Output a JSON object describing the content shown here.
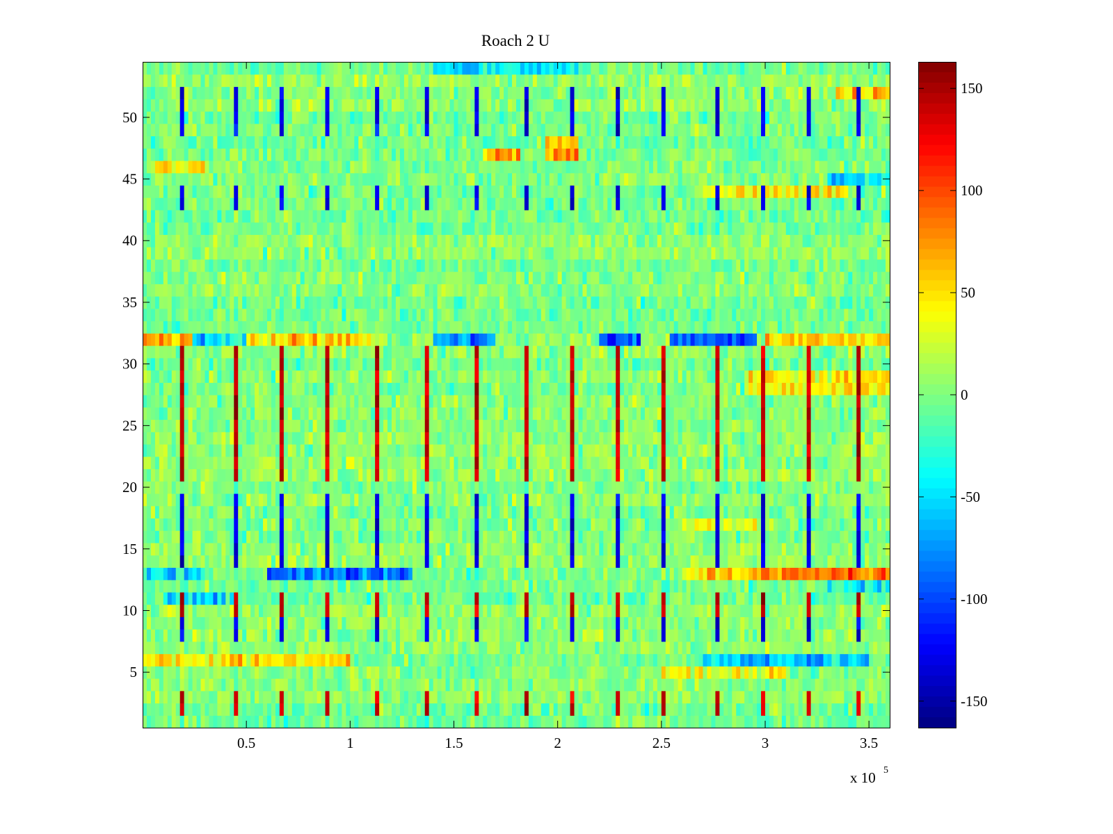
{
  "chart_data": {
    "type": "heatmap",
    "title": "Roach 2 U",
    "xlabel": "",
    "ylabel": "",
    "x_exponent_base": "x 10",
    "x_exponent_power": "5",
    "xlim": [
      0,
      3.6
    ],
    "ylim": [
      0.5,
      54.5
    ],
    "x_ticks": [
      {
        "value": 0.5,
        "label": "0.5"
      },
      {
        "value": 1,
        "label": "1"
      },
      {
        "value": 1.5,
        "label": "1.5"
      },
      {
        "value": 2,
        "label": "2"
      },
      {
        "value": 2.5,
        "label": "2.5"
      },
      {
        "value": 3,
        "label": "3"
      },
      {
        "value": 3.5,
        "label": "3.5"
      }
    ],
    "y_ticks": [
      {
        "value": 5,
        "label": "5"
      },
      {
        "value": 10,
        "label": "10"
      },
      {
        "value": 15,
        "label": "15"
      },
      {
        "value": 20,
        "label": "20"
      },
      {
        "value": 25,
        "label": "25"
      },
      {
        "value": 30,
        "label": "30"
      },
      {
        "value": 35,
        "label": "35"
      },
      {
        "value": 40,
        "label": "40"
      },
      {
        "value": 45,
        "label": "45"
      },
      {
        "value": 50,
        "label": "50"
      }
    ],
    "rows": 54,
    "columns": 180,
    "colorbar": {
      "colormap": "jet",
      "clim": [
        -163,
        163
      ],
      "ticks": [
        {
          "value": 150,
          "label": "150"
        },
        {
          "value": 100,
          "label": "100"
        },
        {
          "value": 50,
          "label": "50"
        },
        {
          "value": 0,
          "label": "0"
        },
        {
          "value": -50,
          "label": "-50"
        },
        {
          "value": -100,
          "label": "-100"
        },
        {
          "value": -150,
          "label": "-150"
        }
      ]
    },
    "background_value": 0,
    "noise_amplitude": 22,
    "periodic_spikes": {
      "x_positions": [
        0.18,
        0.44,
        0.67,
        0.89,
        1.12,
        1.36,
        1.61,
        1.84,
        2.06,
        2.28,
        2.52,
        2.76,
        2.99,
        3.21,
        3.44
      ],
      "rows_positive": [
        2,
        3,
        10,
        11,
        21,
        22,
        23,
        24,
        25,
        26,
        27,
        28,
        29,
        30,
        31
      ],
      "rows_negative": [
        8,
        9,
        14,
        15,
        16,
        17,
        18,
        19,
        43,
        44,
        49,
        50,
        51,
        52
      ],
      "positive_value": 140,
      "negative_value": -130
    },
    "row_bands": [
      {
        "row": 32,
        "x_start": 0.0,
        "x_end": 0.25,
        "value": 70
      },
      {
        "row": 32,
        "x_start": 0.25,
        "x_end": 0.5,
        "value": -40
      },
      {
        "row": 32,
        "x_start": 0.5,
        "x_end": 1.1,
        "value": 60
      },
      {
        "row": 32,
        "x_start": 1.4,
        "x_end": 1.7,
        "value": -80
      },
      {
        "row": 32,
        "x_start": 2.2,
        "x_end": 2.4,
        "value": -95
      },
      {
        "row": 32,
        "x_start": 2.55,
        "x_end": 2.95,
        "value": -90
      },
      {
        "row": 32,
        "x_start": 3.0,
        "x_end": 3.6,
        "value": 55
      },
      {
        "row": 13,
        "x_start": 0.0,
        "x_end": 0.3,
        "value": -40
      },
      {
        "row": 13,
        "x_start": 0.6,
        "x_end": 1.3,
        "value": -85
      },
      {
        "row": 13,
        "x_start": 2.6,
        "x_end": 3.0,
        "value": 50
      },
      {
        "row": 13,
        "x_start": 3.0,
        "x_end": 3.6,
        "value": 85
      },
      {
        "row": 6,
        "x_start": 0.0,
        "x_end": 1.0,
        "value": 50
      },
      {
        "row": 6,
        "x_start": 2.7,
        "x_end": 3.5,
        "value": -55
      },
      {
        "row": 5,
        "x_start": 2.5,
        "x_end": 3.1,
        "value": 40
      },
      {
        "row": 29,
        "x_start": 2.9,
        "x_end": 3.6,
        "value": 45
      },
      {
        "row": 28,
        "x_start": 2.9,
        "x_end": 3.6,
        "value": 40
      },
      {
        "row": 47,
        "x_start": 1.65,
        "x_end": 1.82,
        "value": 60
      },
      {
        "row": 47,
        "x_start": 1.95,
        "x_end": 2.1,
        "value": 75
      },
      {
        "row": 48,
        "x_start": 1.95,
        "x_end": 2.1,
        "value": 60
      },
      {
        "row": 46,
        "x_start": 0.05,
        "x_end": 0.3,
        "value": 45
      },
      {
        "row": 54,
        "x_start": 1.4,
        "x_end": 2.1,
        "value": -45
      },
      {
        "row": 52,
        "x_start": 3.35,
        "x_end": 3.6,
        "value": 60
      },
      {
        "row": 44,
        "x_start": 2.7,
        "x_end": 3.4,
        "value": 35
      },
      {
        "row": 45,
        "x_start": 3.3,
        "x_end": 3.6,
        "value": -50
      },
      {
        "row": 17,
        "x_start": 2.6,
        "x_end": 3.0,
        "value": 35
      },
      {
        "row": 12,
        "x_start": 3.3,
        "x_end": 3.6,
        "value": -40
      },
      {
        "row": 11,
        "x_start": 0.1,
        "x_end": 0.45,
        "value": -45
      }
    ]
  }
}
